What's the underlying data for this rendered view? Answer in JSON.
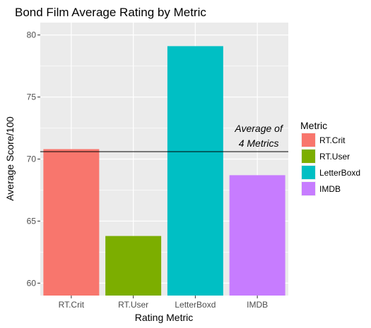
{
  "chart_data": {
    "type": "bar",
    "title": "Bond Film Average Rating by Metric",
    "xlabel": "Rating Metric",
    "ylabel": "Average Score/100",
    "categories": [
      "RT.Crit",
      "RT.User",
      "LetterBoxd",
      "IMDB"
    ],
    "values": [
      70.8,
      63.8,
      79.1,
      68.7
    ],
    "colors": [
      "#F8766D",
      "#7CAE00",
      "#00BFC4",
      "#C77CFF"
    ],
    "ylim": [
      59,
      81
    ],
    "yticks": [
      60,
      65,
      70,
      75,
      80
    ],
    "grid": true,
    "panel_background": "#EBEBEB",
    "legend": {
      "title": "Metric",
      "position": "right",
      "entries": [
        "RT.Crit",
        "RT.User",
        "LetterBoxd",
        "IMDB"
      ]
    },
    "reference_line": {
      "value": 70.6,
      "color": "#000000",
      "label_lines": [
        "Average of",
        "4 Metrics"
      ]
    }
  }
}
